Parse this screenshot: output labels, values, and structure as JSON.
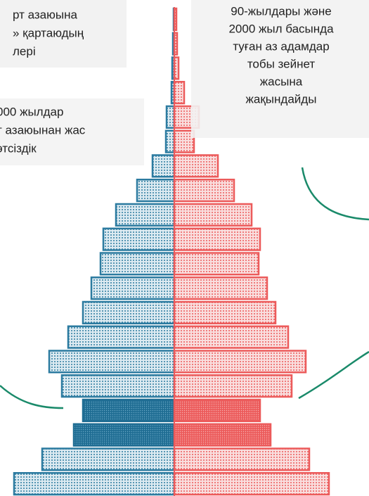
{
  "chart_data": {
    "type": "pyramid",
    "annotations": [
      [
        "рт азаюына",
        "» қартаюдың",
        "лері"
      ],
      [
        "000 жылдар",
        "т азаюынан жас",
        "этсіздік"
      ],
      [
        "90-жылдары және",
        "2000 жыл басында",
        "туған аз адамдар",
        "тобы зейнет",
        "жасына",
        "жақындайды"
      ]
    ],
    "xlim": [
      0,
      240
    ],
    "series": [
      {
        "side": "left",
        "color": "#2c7ba0",
        "highlight_color": "#1f6d93",
        "values": [
          1,
          2,
          3,
          4,
          11,
          12,
          31,
          53,
          83,
          101,
          105,
          118,
          130,
          151,
          178,
          160,
          130,
          143,
          188,
          228
        ],
        "highlight": [
          false,
          false,
          false,
          false,
          false,
          false,
          false,
          false,
          false,
          false,
          false,
          false,
          false,
          false,
          false,
          false,
          true,
          true,
          false,
          false
        ]
      },
      {
        "side": "right",
        "color": "#ec5b5b",
        "highlight_color": "#ec5b5b",
        "values": [
          3,
          4,
          6,
          14,
          35,
          28,
          62,
          85,
          110,
          122,
          120,
          132,
          144,
          162,
          187,
          167,
          122,
          137,
          192,
          220
        ],
        "highlight": [
          false,
          false,
          false,
          false,
          false,
          false,
          false,
          false,
          false,
          false,
          false,
          false,
          false,
          false,
          false,
          false,
          true,
          true,
          false,
          false
        ]
      }
    ]
  }
}
